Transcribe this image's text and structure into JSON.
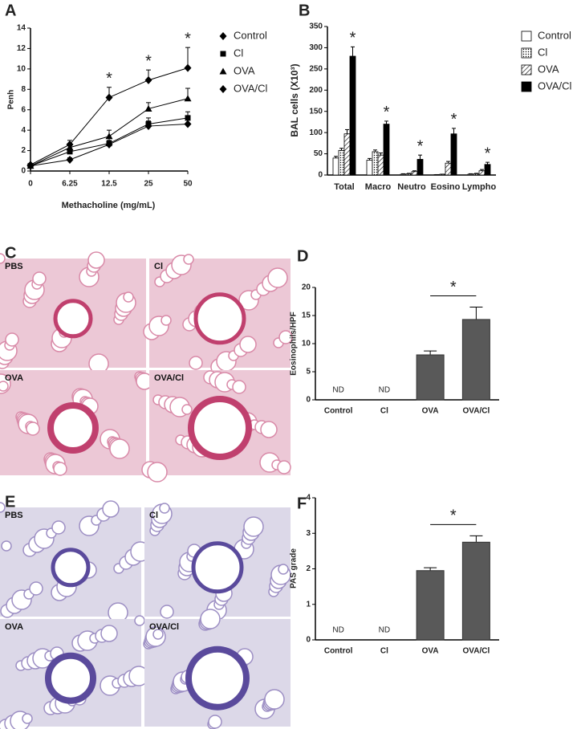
{
  "panel_labels": [
    "A",
    "B",
    "C",
    "D",
    "E",
    "F"
  ],
  "images": [
    {
      "labels": [
        "PBS",
        "Cl",
        "OVA",
        "OVA/Cl"
      ]
    },
    {
      "labels": [
        "PBS",
        "Cl",
        "OVA",
        "OVA/Cl"
      ]
    }
  ],
  "chart_data": [
    {
      "type": "line",
      "xlabel": "Methacholine (mg/mL)",
      "ylabel": "Penh",
      "categories": [
        "0",
        "6.25",
        "12.5",
        "25",
        "50"
      ],
      "ylim": [
        0,
        14
      ],
      "yticks": [
        0,
        2,
        4,
        6,
        8,
        10,
        12,
        14
      ],
      "series": [
        {
          "name": "Control",
          "color": "#000000",
          "marker": "diamond",
          "values": [
            0.5,
            1.1,
            2.6,
            4.4,
            4.6
          ],
          "errors": [
            0.1,
            0.2,
            0.4,
            0.5,
            0.4
          ]
        },
        {
          "name": "Cl",
          "color": "#000000",
          "marker": "square",
          "values": [
            0.5,
            1.9,
            2.7,
            4.6,
            5.2
          ],
          "errors": [
            0.1,
            0.3,
            0.5,
            0.6,
            0.6
          ]
        },
        {
          "name": "OVA",
          "color": "#000000",
          "marker": "triangle",
          "values": [
            0.5,
            2.3,
            3.4,
            6.1,
            7.1
          ],
          "errors": [
            0.1,
            0.4,
            0.6,
            0.6,
            1.0
          ]
        },
        {
          "name": "OVA/Cl",
          "color": "#000000",
          "marker": "diamond",
          "values": [
            0.6,
            2.6,
            7.2,
            8.9,
            10.1
          ],
          "errors": [
            0.1,
            0.4,
            1.0,
            1.0,
            2.0
          ]
        }
      ],
      "annotations": [
        {
          "index": 2,
          "label": "*"
        },
        {
          "index": 3,
          "label": "*"
        },
        {
          "index": 4,
          "label": "*"
        }
      ]
    },
    {
      "type": "grouped_bar",
      "ylabel": "BAL cells (X10³)",
      "categories": [
        "Total",
        "Macro",
        "Neutro",
        "Eosino",
        "Lympho"
      ],
      "ylim": [
        0,
        350
      ],
      "yticks": [
        0,
        50,
        100,
        150,
        200,
        250,
        300,
        350
      ],
      "series": [
        {
          "name": "Control",
          "color": "#ffffff",
          "values": [
            40,
            35,
            2,
            1,
            2
          ],
          "errors": [
            4,
            4,
            1,
            0,
            1
          ]
        },
        {
          "name": "Cl",
          "color": "#ffffff",
          "pattern": "dots",
          "values": [
            58,
            55,
            3,
            2,
            3
          ],
          "errors": [
            5,
            4,
            1,
            0,
            1
          ]
        },
        {
          "name": "OVA",
          "color": "#ffffff",
          "pattern": "hatch",
          "values": [
            97,
            47,
            8,
            28,
            10
          ],
          "errors": [
            10,
            5,
            2,
            4,
            3
          ]
        },
        {
          "name": "OVA/Cl",
          "color": "#000000",
          "values": [
            280,
            120,
            37,
            97,
            25
          ],
          "errors": [
            22,
            7,
            10,
            13,
            5
          ]
        }
      ],
      "annotations": [
        {
          "index": 0,
          "label": "*"
        },
        {
          "index": 1,
          "label": "*"
        },
        {
          "index": 2,
          "label": "*"
        },
        {
          "index": 3,
          "label": "*"
        },
        {
          "index": 4,
          "label": "*"
        }
      ]
    },
    {
      "type": "bar",
      "ylabel": "Eosinophils/HPF",
      "categories": [
        "Control",
        "Cl",
        "OVA",
        "OVA/Cl"
      ],
      "values": [
        null,
        null,
        8,
        14.3
      ],
      "value_labels": [
        "ND",
        "ND",
        null,
        null
      ],
      "errors": [
        null,
        null,
        0.7,
        2.2
      ],
      "color": "#595959",
      "ylim": [
        0,
        20
      ],
      "yticks": [
        0,
        5,
        10,
        15,
        20
      ],
      "significance": [
        {
          "from": 2,
          "to": 3,
          "label": "*"
        }
      ]
    },
    {
      "type": "bar",
      "ylabel": "PAS grade",
      "categories": [
        "Control",
        "Cl",
        "OVA",
        "OVA/Cl"
      ],
      "values": [
        null,
        null,
        1.95,
        2.75
      ],
      "value_labels": [
        "ND",
        "ND",
        null,
        null
      ],
      "errors": [
        null,
        null,
        0.08,
        0.18
      ],
      "color": "#595959",
      "ylim": [
        0,
        4
      ],
      "yticks": [
        0,
        1,
        2,
        3,
        4
      ],
      "significance": [
        {
          "from": 2,
          "to": 3,
          "label": "*"
        }
      ]
    }
  ]
}
